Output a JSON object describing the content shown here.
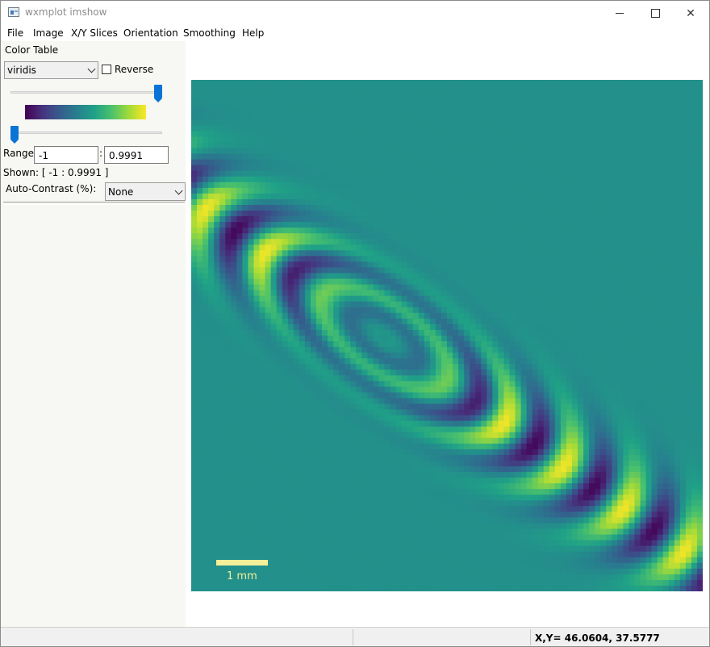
{
  "window": {
    "title": "wxmplot imshow"
  },
  "menu": [
    "File",
    "Image",
    "X/Y Slices",
    "Orientation",
    "Smoothing",
    "Help"
  ],
  "sidebar": {
    "color_table_label": "Color Table",
    "colormap": "viridis",
    "reverse_label": "Reverse",
    "reverse_checked": false,
    "range_label": "Range:",
    "range_min": "-1",
    "range_sep": ":",
    "range_max": "0.9991",
    "shown_label": "Shown: [ -1 :  0.9991 ]",
    "auto_contrast_label": "Auto-Contrast (%):",
    "auto_contrast_value": "None",
    "max_slider_fraction": 1.0,
    "min_slider_fraction": 0.0
  },
  "image": {
    "colormap_colors": [
      "#440154",
      "#46327e",
      "#365c8d",
      "#277f8e",
      "#1fa187",
      "#4ac16d",
      "#a0da39",
      "#fde725"
    ],
    "scale_label": "1 mm"
  },
  "status": {
    "coords": "X,Y= 46.0604, 37.5777"
  }
}
